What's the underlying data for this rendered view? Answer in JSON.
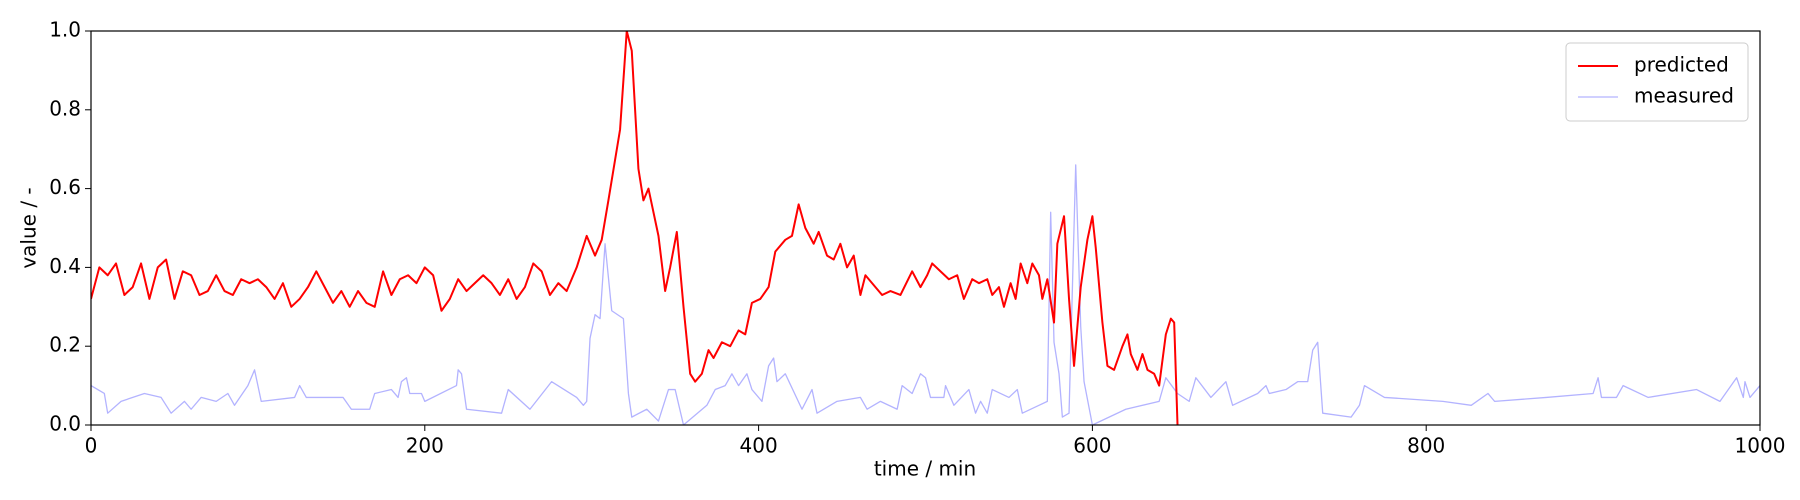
{
  "chart_data": {
    "type": "line",
    "xlabel": "time / min",
    "ylabel": "value / -",
    "xlim": [
      0,
      1000
    ],
    "xticks": [
      0,
      200,
      400,
      600,
      800,
      1000
    ],
    "ylim": [
      0,
      1
    ],
    "yticks": [
      {
        "value": 0,
        "label": "0.0"
      },
      0.2,
      0.4,
      0.6,
      0.8,
      {
        "value": 1,
        "label": "1.0"
      }
    ],
    "grid": false,
    "legend": "upper right",
    "series": [
      {
        "name": "predicted",
        "color": "#ff0000",
        "x": [
          0,
          5,
          10,
          15,
          20,
          25,
          30,
          35,
          40,
          45,
          50,
          55,
          60,
          65,
          70,
          75,
          80,
          85,
          90,
          95,
          100,
          105,
          110,
          115,
          120,
          125,
          130,
          135,
          140,
          145,
          150,
          155,
          160,
          165,
          170,
          175,
          180,
          185,
          190,
          195,
          200,
          205,
          210,
          215,
          220,
          225,
          230,
          235,
          240,
          245,
          250,
          255,
          260,
          265,
          270,
          275,
          280,
          285,
          291,
          297,
          302,
          306,
          310,
          317,
          321,
          324,
          328,
          331,
          334,
          340,
          344,
          347,
          351,
          355,
          359,
          362,
          366,
          370,
          373,
          378,
          383,
          388,
          392,
          396,
          401,
          406,
          410,
          416,
          420,
          424,
          428,
          433,
          436,
          441,
          445,
          449,
          453,
          457,
          461,
          464,
          470,
          474,
          479,
          485,
          492,
          497,
          501,
          504,
          509,
          514,
          519,
          523,
          528,
          532,
          537,
          540,
          544,
          547,
          551,
          554,
          557,
          561,
          564,
          568,
          570,
          573,
          577,
          579,
          583,
          586,
          589,
          593,
          597,
          600,
          602,
          606,
          609,
          613,
          618,
          621,
          623,
          627,
          630,
          633,
          637,
          640,
          644,
          647,
          649,
          651
        ],
        "values": [
          0.32,
          0.4,
          0.38,
          0.41,
          0.33,
          0.35,
          0.41,
          0.32,
          0.4,
          0.42,
          0.32,
          0.39,
          0.38,
          0.33,
          0.34,
          0.38,
          0.34,
          0.33,
          0.37,
          0.36,
          0.37,
          0.35,
          0.32,
          0.36,
          0.3,
          0.32,
          0.35,
          0.39,
          0.35,
          0.31,
          0.34,
          0.3,
          0.34,
          0.31,
          0.3,
          0.39,
          0.33,
          0.37,
          0.38,
          0.36,
          0.4,
          0.38,
          0.29,
          0.32,
          0.37,
          0.34,
          0.36,
          0.38,
          0.36,
          0.33,
          0.37,
          0.32,
          0.35,
          0.41,
          0.39,
          0.33,
          0.36,
          0.34,
          0.4,
          0.48,
          0.43,
          0.47,
          0.57,
          0.75,
          1.0,
          0.95,
          0.65,
          0.57,
          0.6,
          0.48,
          0.34,
          0.4,
          0.49,
          0.3,
          0.13,
          0.11,
          0.13,
          0.19,
          0.17,
          0.21,
          0.2,
          0.24,
          0.23,
          0.31,
          0.32,
          0.35,
          0.44,
          0.47,
          0.48,
          0.56,
          0.5,
          0.46,
          0.49,
          0.43,
          0.42,
          0.46,
          0.4,
          0.43,
          0.33,
          0.38,
          0.35,
          0.33,
          0.34,
          0.33,
          0.39,
          0.35,
          0.38,
          0.41,
          0.39,
          0.37,
          0.38,
          0.32,
          0.37,
          0.36,
          0.37,
          0.33,
          0.35,
          0.3,
          0.36,
          0.32,
          0.41,
          0.36,
          0.41,
          0.38,
          0.32,
          0.37,
          0.26,
          0.46,
          0.53,
          0.32,
          0.15,
          0.35,
          0.47,
          0.53,
          0.45,
          0.26,
          0.15,
          0.14,
          0.2,
          0.23,
          0.18,
          0.14,
          0.18,
          0.14,
          0.13,
          0.1,
          0.23,
          0.27,
          0.26,
          0.0
        ]
      },
      {
        "name": "measured",
        "color": "#b3b3ff",
        "x": [
          0,
          8,
          10,
          18,
          32,
          42,
          48,
          56,
          60,
          66,
          75,
          82,
          86,
          94,
          98,
          102,
          122,
          125,
          129,
          151,
          156,
          167,
          170,
          180,
          184,
          186,
          189,
          191,
          198,
          200,
          219,
          220,
          222,
          225,
          246,
          250,
          263,
          276,
          291,
          295,
          297,
          299,
          302,
          305,
          308,
          312,
          319,
          322,
          324,
          333,
          340,
          346,
          350,
          355,
          369,
          374,
          380,
          384,
          388,
          393,
          396,
          402,
          406,
          409,
          411,
          416,
          426,
          432,
          435,
          447,
          461,
          465,
          473,
          483,
          486,
          492,
          497,
          500,
          503,
          511,
          512,
          517,
          526,
          530,
          533,
          537,
          540,
          550,
          555,
          558,
          568,
          573,
          575,
          577,
          580,
          582,
          586,
          590,
          593,
          595,
          600,
          620,
          640,
          644,
          651,
          658,
          662,
          671,
          680,
          684,
          699,
          704,
          706,
          716,
          723,
          729,
          732,
          735,
          738,
          755,
          760,
          763,
          775,
          810,
          827,
          837,
          841,
          872,
          900,
          903,
          905,
          914,
          918,
          933,
          962,
          976,
          986,
          990,
          991,
          994,
          1000
        ],
        "values": [
          0.1,
          0.08,
          0.03,
          0.06,
          0.08,
          0.07,
          0.03,
          0.06,
          0.04,
          0.07,
          0.06,
          0.08,
          0.05,
          0.1,
          0.14,
          0.06,
          0.07,
          0.1,
          0.07,
          0.07,
          0.04,
          0.04,
          0.08,
          0.09,
          0.07,
          0.11,
          0.12,
          0.08,
          0.08,
          0.06,
          0.1,
          0.14,
          0.13,
          0.04,
          0.03,
          0.09,
          0.04,
          0.11,
          0.07,
          0.05,
          0.06,
          0.22,
          0.28,
          0.27,
          0.46,
          0.29,
          0.27,
          0.08,
          0.02,
          0.04,
          0.01,
          0.09,
          0.09,
          0.0,
          0.05,
          0.09,
          0.1,
          0.13,
          0.1,
          0.13,
          0.09,
          0.06,
          0.15,
          0.17,
          0.11,
          0.13,
          0.04,
          0.09,
          0.03,
          0.06,
          0.07,
          0.04,
          0.06,
          0.04,
          0.1,
          0.08,
          0.13,
          0.12,
          0.07,
          0.07,
          0.1,
          0.05,
          0.09,
          0.03,
          0.06,
          0.03,
          0.09,
          0.07,
          0.09,
          0.03,
          0.05,
          0.06,
          0.54,
          0.21,
          0.13,
          0.02,
          0.03,
          0.66,
          0.25,
          0.11,
          0.0,
          0.04,
          0.06,
          0.12,
          0.08,
          0.06,
          0.12,
          0.07,
          0.11,
          0.05,
          0.08,
          0.1,
          0.08,
          0.09,
          0.11,
          0.11,
          0.19,
          0.21,
          0.03,
          0.02,
          0.05,
          0.1,
          0.07,
          0.06,
          0.05,
          0.08,
          0.06,
          0.07,
          0.08,
          0.12,
          0.07,
          0.07,
          0.1,
          0.07,
          0.09,
          0.06,
          0.12,
          0.07,
          0.11,
          0.07,
          0.1
        ]
      }
    ]
  }
}
